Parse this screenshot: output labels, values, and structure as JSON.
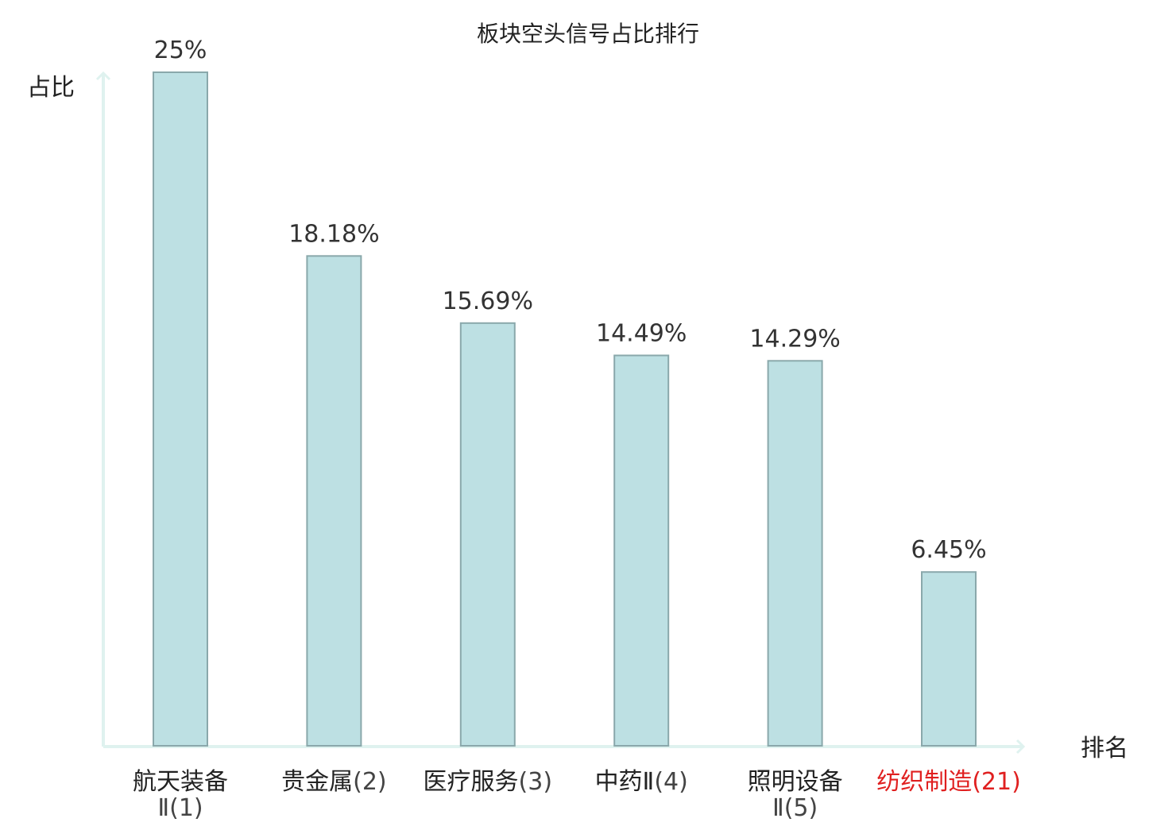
{
  "chart_data": {
    "type": "bar",
    "title": "板块空头信号占比排行",
    "ylabel": "占比",
    "xlabel": "排名",
    "ylim": [
      0,
      25
    ],
    "grid": false,
    "legend": "none",
    "categories": [
      {
        "name": "航天装备Ⅱ",
        "rank": "(1)",
        "highlight": false
      },
      {
        "name": "贵金属",
        "rank": "(2)",
        "highlight": false
      },
      {
        "name": "医疗服务",
        "rank": "(3)",
        "highlight": false
      },
      {
        "name": "中药Ⅱ",
        "rank": "(4)",
        "highlight": false
      },
      {
        "name": "照明设备Ⅱ",
        "rank": "(5)",
        "highlight": false
      },
      {
        "name": "纺织制造",
        "rank": "(21)",
        "highlight": true
      }
    ],
    "values": [
      25,
      18.18,
      15.69,
      14.49,
      14.29,
      6.45
    ],
    "value_labels": [
      "25%",
      "18.18%",
      "15.69%",
      "14.49%",
      "14.29%",
      "6.45%"
    ]
  },
  "colors": {
    "bar_fill": "#bde0e3",
    "bar_stroke": "#8aa8ab",
    "axis": "#dff2ef",
    "text": "#222222",
    "rank_text": "#444444",
    "highlight": "#e02020"
  }
}
